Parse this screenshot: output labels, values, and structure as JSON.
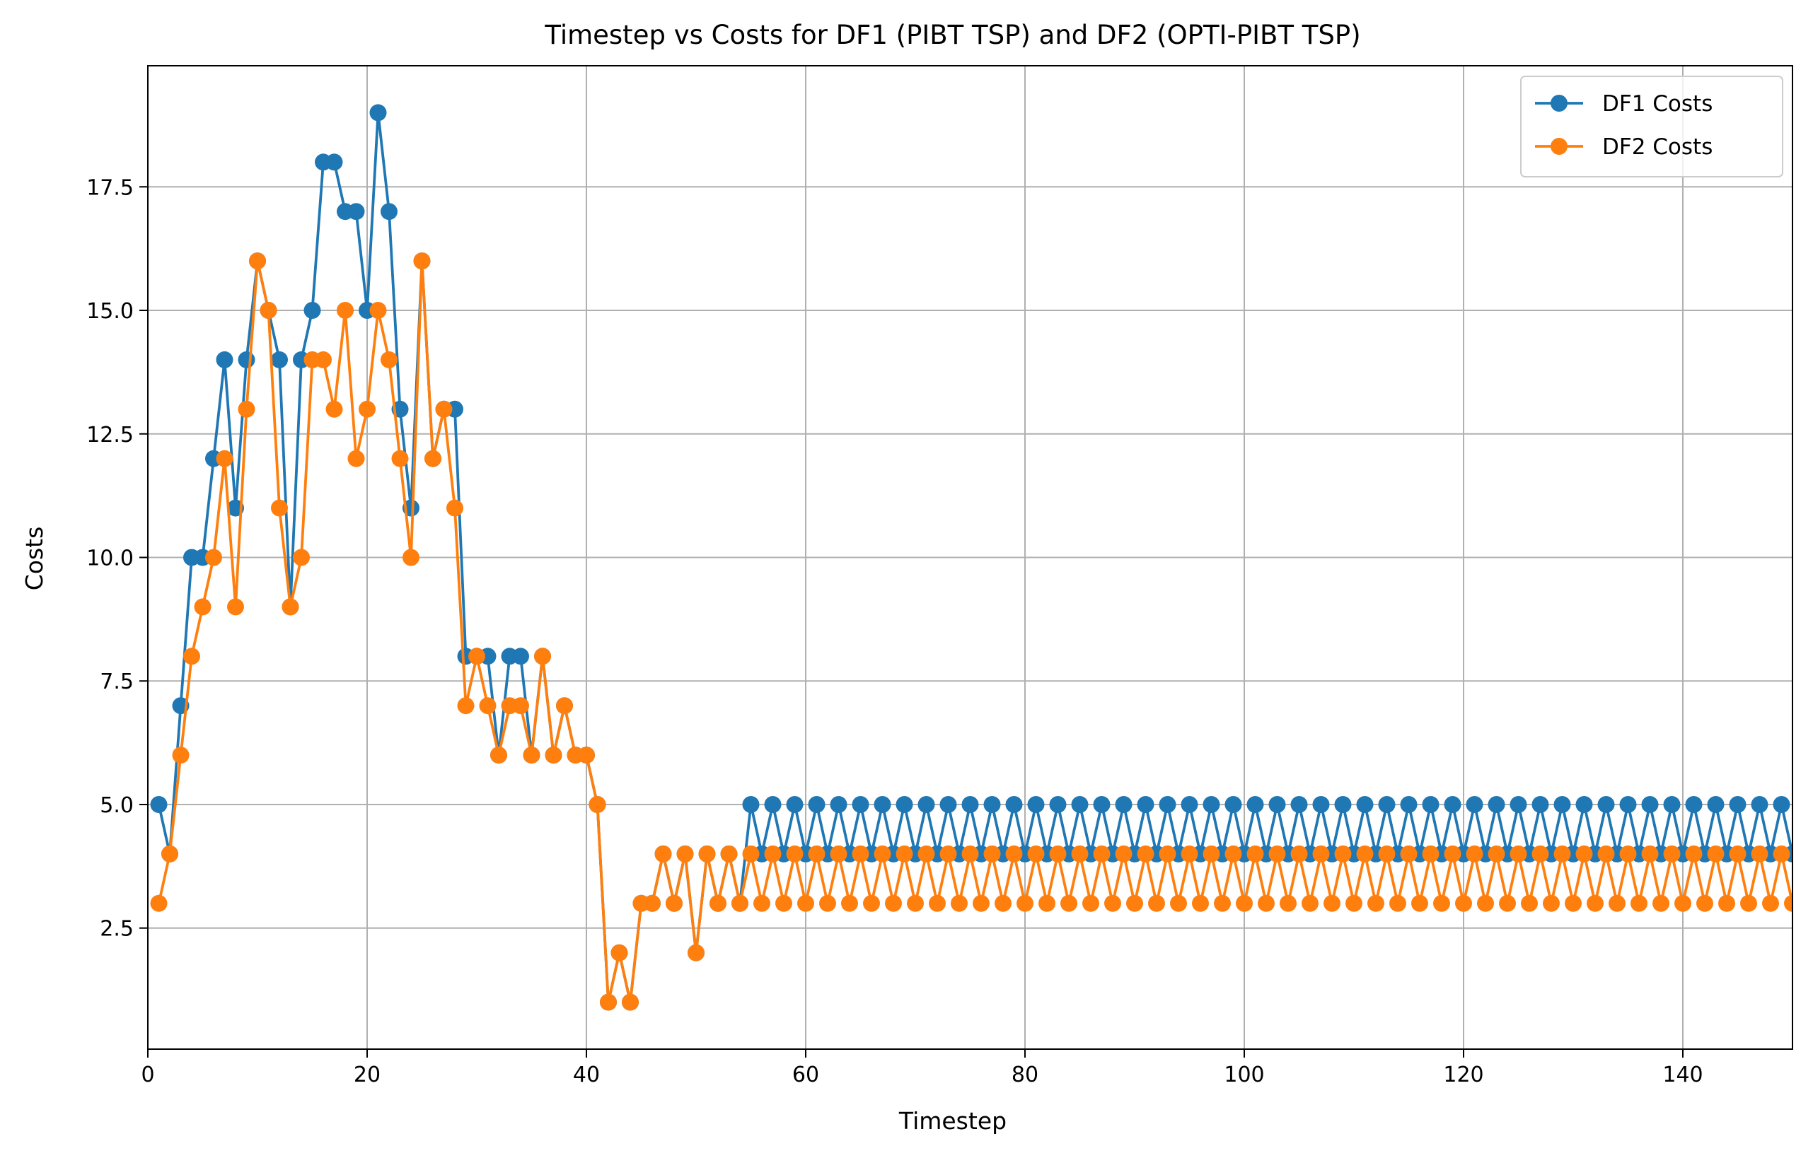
{
  "chart_data": {
    "type": "line",
    "title": "Timestep vs Costs for DF1 (PIBT TSP) and DF2 (OPTI-PIBT TSP)",
    "xlabel": "Timestep",
    "ylabel": "Costs",
    "xlim": [
      0,
      150
    ],
    "ylim": [
      0.05,
      19.95
    ],
    "xticks": [
      0,
      20,
      40,
      60,
      80,
      100,
      120,
      140
    ],
    "xtick_labels": [
      "0",
      "20",
      "40",
      "60",
      "80",
      "100",
      "120",
      "140"
    ],
    "yticks": [
      2.5,
      5.0,
      7.5,
      10.0,
      12.5,
      15.0,
      17.5
    ],
    "ytick_labels": [
      "2.5",
      "5.0",
      "7.5",
      "10.0",
      "12.5",
      "15.0",
      "17.5"
    ],
    "grid": true,
    "legend_position": "top-right",
    "x": [
      1,
      2,
      3,
      4,
      5,
      6,
      7,
      8,
      9,
      10,
      11,
      12,
      13,
      14,
      15,
      16,
      17,
      18,
      19,
      20,
      21,
      22,
      23,
      24,
      25,
      26,
      27,
      28,
      29,
      30,
      31,
      32,
      33,
      34,
      35,
      36,
      37,
      38,
      39,
      40,
      41,
      42,
      43,
      44,
      45,
      46,
      47,
      48,
      49,
      50,
      51,
      52,
      53,
      54,
      55,
      56,
      57,
      58,
      59,
      60,
      61,
      62,
      63,
      64,
      65,
      66,
      67,
      68,
      69,
      70,
      71,
      72,
      73,
      74,
      75,
      76,
      77,
      78,
      79,
      80,
      81,
      82,
      83,
      84,
      85,
      86,
      87,
      88,
      89,
      90,
      91,
      92,
      93,
      94,
      95,
      96,
      97,
      98,
      99,
      100,
      101,
      102,
      103,
      104,
      105,
      106,
      107,
      108,
      109,
      110,
      111,
      112,
      113,
      114,
      115,
      116,
      117,
      118,
      119,
      120,
      121,
      122,
      123,
      124,
      125,
      126,
      127,
      128,
      129,
      130,
      131,
      132,
      133,
      134,
      135,
      136,
      137,
      138,
      139,
      140,
      141,
      142,
      143,
      144,
      145,
      146,
      147,
      148,
      149,
      150
    ],
    "series": [
      {
        "name": "DF1 Costs",
        "color": "#1f77b4",
        "values": [
          5,
          4,
          7,
          10,
          10,
          12,
          14,
          11,
          14,
          16,
          15,
          14,
          9,
          14,
          15,
          18,
          18,
          17,
          17,
          15,
          19,
          17,
          13,
          11,
          16,
          12,
          13,
          13,
          8,
          8,
          8,
          6,
          8,
          8,
          6,
          8,
          6,
          7,
          6,
          6,
          5,
          1,
          2,
          1,
          3,
          3,
          4,
          3,
          4,
          2,
          4,
          3,
          4,
          3,
          5,
          4,
          5,
          4,
          5,
          4,
          5,
          4,
          5,
          4,
          5,
          4,
          5,
          4,
          5,
          4,
          5,
          4,
          5,
          4,
          5,
          4,
          5,
          4,
          5,
          4,
          5,
          4,
          5,
          4,
          5,
          4,
          5,
          4,
          5,
          4,
          5,
          4,
          5,
          4,
          5,
          4,
          5,
          4,
          5,
          4,
          5,
          4,
          5,
          4,
          5,
          4,
          5,
          4,
          5,
          4,
          5,
          4,
          5,
          4,
          5,
          4,
          5,
          4,
          5,
          4,
          5,
          4,
          5,
          4,
          5,
          4,
          5,
          4,
          5,
          4,
          5,
          4,
          5,
          4,
          5,
          4,
          5,
          4,
          5,
          4,
          5,
          4,
          5,
          4,
          5,
          4,
          5,
          4,
          5,
          4
        ]
      },
      {
        "name": "DF2 Costs",
        "color": "#ff7f0e",
        "values": [
          3,
          4,
          6,
          8,
          9,
          10,
          12,
          9,
          13,
          16,
          15,
          11,
          9,
          10,
          14,
          14,
          13,
          15,
          12,
          13,
          15,
          14,
          12,
          10,
          16,
          12,
          13,
          11,
          7,
          8,
          7,
          6,
          7,
          7,
          6,
          8,
          6,
          7,
          6,
          6,
          5,
          1,
          2,
          1,
          3,
          3,
          4,
          3,
          4,
          2,
          4,
          3,
          4,
          3,
          4,
          3,
          4,
          3,
          4,
          3,
          4,
          3,
          4,
          3,
          4,
          3,
          4,
          3,
          4,
          3,
          4,
          3,
          4,
          3,
          4,
          3,
          4,
          3,
          4,
          3,
          4,
          3,
          4,
          3,
          4,
          3,
          4,
          3,
          4,
          3,
          4,
          3,
          4,
          3,
          4,
          3,
          4,
          3,
          4,
          3,
          4,
          3,
          4,
          3,
          4,
          3,
          4,
          3,
          4,
          3,
          4,
          3,
          4,
          3,
          4,
          3,
          4,
          3,
          4,
          3,
          4,
          3,
          4,
          3,
          4,
          3,
          4,
          3,
          4,
          3,
          4,
          3,
          4,
          3,
          4,
          3,
          4,
          3,
          4,
          3,
          4,
          3,
          4,
          3,
          4,
          3,
          4,
          3,
          4,
          3
        ]
      }
    ]
  }
}
